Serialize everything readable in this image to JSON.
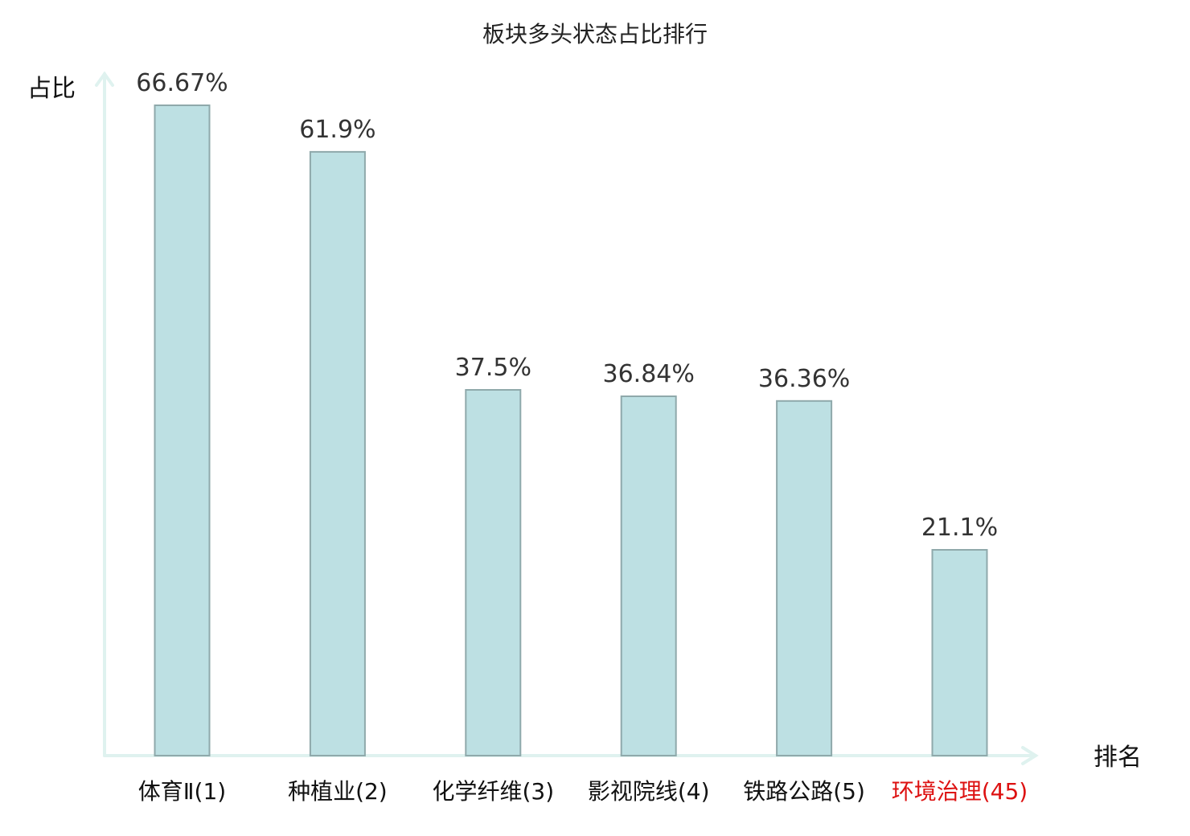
{
  "chart_data": {
    "type": "bar",
    "title": "板块多头状态占比排行",
    "xlabel": "排名",
    "ylabel": "占比",
    "categories": [
      "体育Ⅱ(1)",
      "种植业(2)",
      "化学纤维(3)",
      "影视院线(4)",
      "铁路公路(5)",
      "环境治理(45)"
    ],
    "values": [
      66.67,
      61.9,
      37.5,
      36.84,
      36.36,
      21.1
    ],
    "value_labels": [
      "66.67%",
      "61.9%",
      "37.5%",
      "36.84%",
      "36.36%",
      "21.1%"
    ],
    "highlight_category": "环境治理(45)",
    "highlight_color": "#dd1111",
    "bar_color": "#bde0e3",
    "ylim": [
      0,
      66.67
    ],
    "grid": false,
    "legend": "none"
  }
}
